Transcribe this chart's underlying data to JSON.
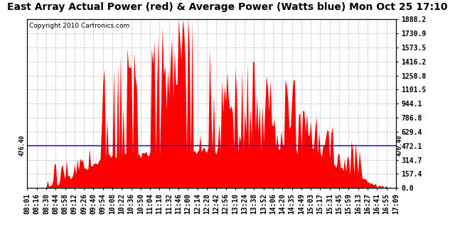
{
  "title": "East Array Actual Power (red) & Average Power (Watts blue) Mon Oct 25 17:10",
  "copyright": "Copyright 2010 Cartronics.com",
  "avg_power": 476.4,
  "ymax": 1888.2,
  "ymin": 0.0,
  "yticks": [
    0.0,
    157.4,
    314.7,
    472.1,
    629.4,
    786.8,
    944.1,
    1101.5,
    1258.8,
    1416.2,
    1573.5,
    1730.9,
    1888.2
  ],
  "avg_label": "476.40",
  "bg_color": "#ffffff",
  "fill_color": "#ff0000",
  "line_color": "#0000ff",
  "grid_color": "#aaaaaa",
  "title_fontsize": 10,
  "copyright_fontsize": 6.5,
  "tick_fontsize": 7,
  "tick_labels": [
    "08:01",
    "08:16",
    "08:30",
    "08:44",
    "08:58",
    "09:12",
    "09:26",
    "09:40",
    "09:54",
    "10:08",
    "10:22",
    "10:36",
    "10:50",
    "11:04",
    "11:18",
    "11:32",
    "11:46",
    "12:00",
    "12:14",
    "12:28",
    "12:42",
    "12:56",
    "13:10",
    "13:24",
    "13:38",
    "13:52",
    "14:06",
    "14:20",
    "14:35",
    "14:49",
    "15:03",
    "15:17",
    "15:31",
    "15:45",
    "15:59",
    "16:13",
    "16:27",
    "16:41",
    "16:55",
    "17:09"
  ]
}
